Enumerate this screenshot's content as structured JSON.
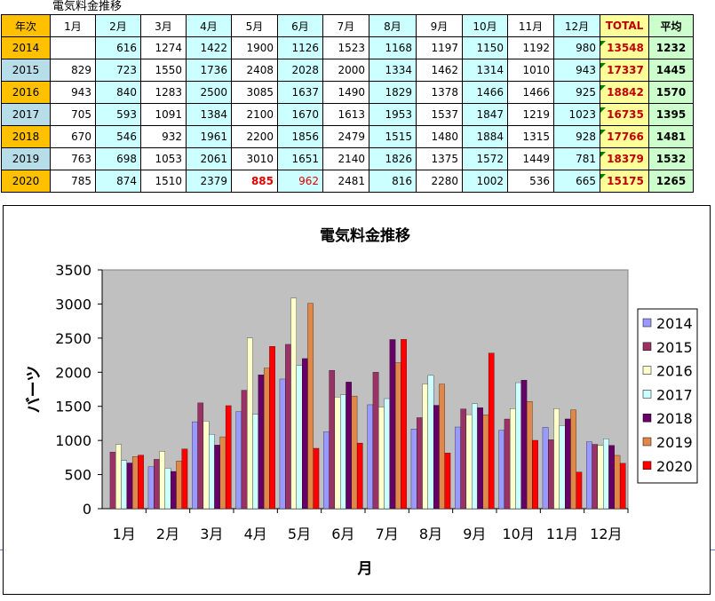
{
  "sheet_title": "電気料金推移",
  "table": {
    "corner": "年次",
    "columns": [
      "1月",
      "2月",
      "3月",
      "4月",
      "5月",
      "6月",
      "7月",
      "8月",
      "9月",
      "10月",
      "11月",
      "12月",
      "TOTAL",
      "平均"
    ],
    "rows": [
      {
        "year": "2014",
        "cells": [
          "",
          "616",
          "1274",
          "1422",
          "1900",
          "1126",
          "1523",
          "1168",
          "1197",
          "1150",
          "1192",
          "980",
          "13548",
          "1232"
        ]
      },
      {
        "year": "2015",
        "cells": [
          "829",
          "723",
          "1550",
          "1736",
          "2408",
          "2028",
          "2000",
          "1334",
          "1462",
          "1314",
          "1010",
          "943",
          "17337",
          "1445"
        ]
      },
      {
        "year": "2016",
        "cells": [
          "943",
          "840",
          "1283",
          "2500",
          "3085",
          "1637",
          "1490",
          "1829",
          "1378",
          "1466",
          "1466",
          "925",
          "18842",
          "1570"
        ]
      },
      {
        "year": "2017",
        "cells": [
          "705",
          "593",
          "1091",
          "1384",
          "2100",
          "1670",
          "1613",
          "1953",
          "1537",
          "1847",
          "1219",
          "1023",
          "16735",
          "1395"
        ]
      },
      {
        "year": "2018",
        "cells": [
          "670",
          "546",
          "932",
          "1961",
          "2200",
          "1856",
          "2479",
          "1515",
          "1480",
          "1884",
          "1315",
          "928",
          "17766",
          "1481"
        ]
      },
      {
        "year": "2019",
        "cells": [
          "763",
          "698",
          "1053",
          "2061",
          "3010",
          "1651",
          "2140",
          "1826",
          "1375",
          "1572",
          "1449",
          "781",
          "18379",
          "1532"
        ]
      },
      {
        "year": "2020",
        "cells": [
          "785",
          "874",
          "1510",
          "2379",
          "885",
          "962",
          "2481",
          "816",
          "2280",
          "1002",
          "536",
          "665",
          "15175",
          "1265"
        ]
      }
    ]
  },
  "chart_data": {
    "type": "bar",
    "title": "電気料金推移",
    "xlabel": "月",
    "ylabel": "バーツ",
    "ylim": [
      0,
      3500
    ],
    "yticks": [
      "0",
      "500",
      "1000",
      "1500",
      "2000",
      "2500",
      "3000",
      "3500"
    ],
    "grid": false,
    "legend_position": "right",
    "plot_background": "#c0c0c0",
    "categories": [
      "1月",
      "2月",
      "3月",
      "4月",
      "5月",
      "6月",
      "7月",
      "8月",
      "9月",
      "10月",
      "11月",
      "12月"
    ],
    "series": [
      {
        "name": "2014",
        "color": "#9999ff",
        "values": [
          null,
          616,
          1274,
          1422,
          1900,
          1126,
          1523,
          1168,
          1197,
          1150,
          1192,
          980
        ]
      },
      {
        "name": "2015",
        "color": "#993366",
        "values": [
          829,
          723,
          1550,
          1736,
          2408,
          2028,
          2000,
          1334,
          1462,
          1314,
          1010,
          943
        ]
      },
      {
        "name": "2016",
        "color": "#ffffcc",
        "values": [
          943,
          840,
          1283,
          2500,
          3085,
          1637,
          1490,
          1829,
          1378,
          1466,
          1466,
          925
        ]
      },
      {
        "name": "2017",
        "color": "#ccffff",
        "values": [
          705,
          593,
          1091,
          1384,
          2100,
          1670,
          1613,
          1953,
          1537,
          1847,
          1219,
          1023
        ]
      },
      {
        "name": "2018",
        "color": "#660066",
        "values": [
          670,
          546,
          932,
          1961,
          2200,
          1856,
          2479,
          1515,
          1480,
          1884,
          1315,
          928
        ]
      },
      {
        "name": "2019",
        "color": "#e0874a",
        "values": [
          763,
          698,
          1053,
          2061,
          3010,
          1651,
          2140,
          1826,
          1375,
          1572,
          1449,
          781
        ]
      },
      {
        "name": "2020",
        "color": "#ff0000",
        "values": [
          785,
          874,
          1510,
          2379,
          885,
          962,
          2481,
          816,
          2280,
          1002,
          536,
          665
        ]
      }
    ]
  }
}
